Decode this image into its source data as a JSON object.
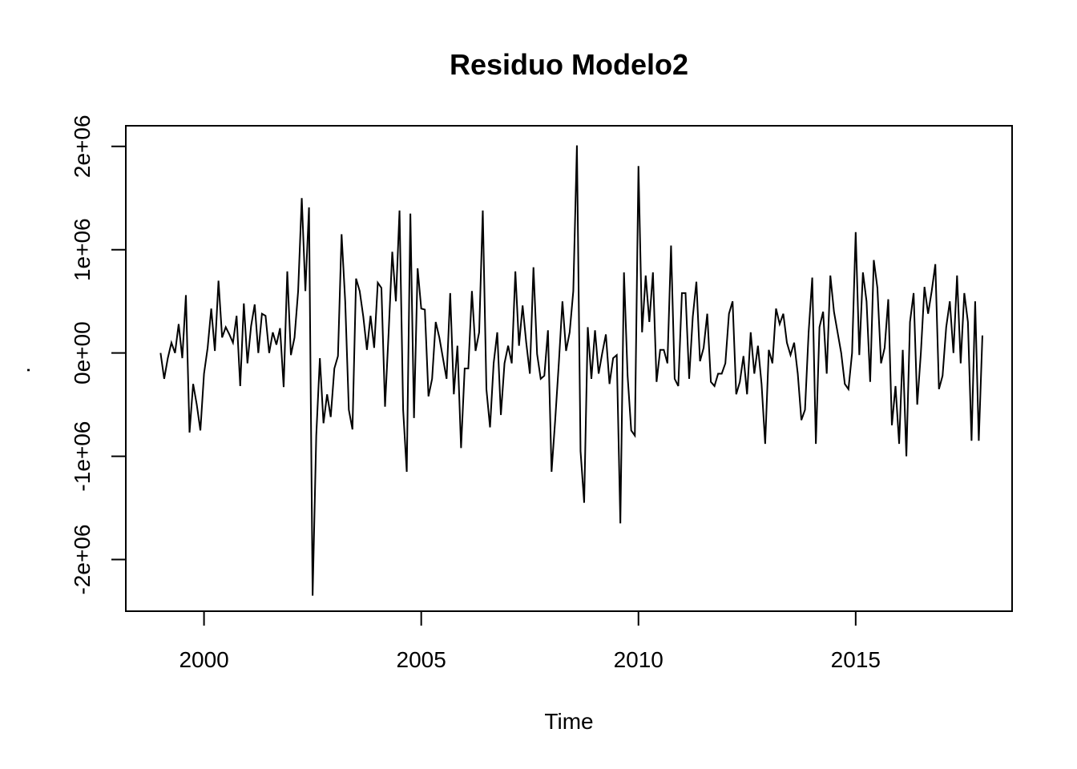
{
  "chart_data": {
    "type": "line",
    "title": "Residuo Modelo2",
    "xlabel": "Time",
    "ylabel": ".",
    "xlim": [
      1998.2,
      2018.6
    ],
    "ylim": [
      -2500000,
      2200000
    ],
    "x_start": 1999.0,
    "x_step": 0.0833333,
    "xticks": [
      2000,
      2005,
      2010,
      2015
    ],
    "xtick_labels": [
      "2000",
      "2005",
      "2010",
      "2015"
    ],
    "yticks": [
      -2000000,
      -1000000,
      0,
      1000000,
      2000000
    ],
    "ytick_labels": [
      "-2e+06",
      "-1e+06",
      "0e+00",
      "1e+06",
      "2e+06"
    ],
    "grid": false,
    "series": [
      {
        "values": [
          0,
          -250000,
          -50000,
          100000,
          0,
          280000,
          -50000,
          560000,
          -770000,
          -300000,
          -500000,
          -750000,
          -200000,
          50000,
          430000,
          20000,
          700000,
          150000,
          250000,
          180000,
          100000,
          360000,
          -320000,
          480000,
          -100000,
          260000,
          470000,
          0,
          380000,
          360000,
          0,
          200000,
          80000,
          240000,
          -330000,
          790000,
          -20000,
          150000,
          600000,
          1500000,
          600000,
          1410000,
          -2350000,
          -800000,
          -50000,
          -680000,
          -400000,
          -620000,
          -150000,
          -30000,
          1150000,
          500000,
          -550000,
          -740000,
          720000,
          600000,
          350000,
          30000,
          360000,
          50000,
          680000,
          630000,
          -520000,
          200000,
          980000,
          500000,
          1380000,
          -550000,
          -1150000,
          1350000,
          -630000,
          820000,
          430000,
          420000,
          -420000,
          -250000,
          300000,
          150000,
          -50000,
          -250000,
          580000,
          -400000,
          70000,
          -920000,
          -150000,
          -150000,
          600000,
          20000,
          200000,
          1380000,
          -350000,
          -720000,
          -100000,
          200000,
          -600000,
          -100000,
          70000,
          -100000,
          790000,
          70000,
          460000,
          100000,
          -200000,
          830000,
          -10000,
          -250000,
          -220000,
          220000,
          -1150000,
          -650000,
          -100000,
          500000,
          20000,
          200000,
          600000,
          2010000,
          -950000,
          -1450000,
          250000,
          -250000,
          220000,
          -200000,
          0,
          180000,
          -300000,
          -50000,
          -20000,
          -1650000,
          780000,
          -220000,
          -750000,
          -800000,
          1810000,
          200000,
          750000,
          300000,
          780000,
          -280000,
          30000,
          30000,
          -100000,
          1040000,
          -250000,
          -320000,
          580000,
          580000,
          -250000,
          350000,
          690000,
          -80000,
          50000,
          380000,
          -280000,
          -320000,
          -200000,
          -200000,
          -100000,
          380000,
          500000,
          -400000,
          -280000,
          -30000,
          -400000,
          200000,
          -200000,
          70000,
          -300000,
          -880000,
          30000,
          -100000,
          430000,
          280000,
          380000,
          100000,
          -20000,
          100000,
          -200000,
          -650000,
          -550000,
          200000,
          730000,
          -880000,
          250000,
          400000,
          -200000,
          750000,
          400000,
          200000,
          0,
          -300000,
          -350000,
          0,
          1170000,
          -20000,
          780000,
          500000,
          -280000,
          900000,
          630000,
          -100000,
          50000,
          520000,
          -700000,
          -320000,
          -880000,
          30000,
          -1000000,
          300000,
          580000,
          -500000,
          0,
          640000,
          380000,
          600000,
          860000,
          -350000,
          -220000,
          250000,
          500000,
          0,
          750000,
          -100000,
          580000,
          300000,
          -850000,
          500000,
          -850000,
          170000
        ]
      }
    ]
  }
}
